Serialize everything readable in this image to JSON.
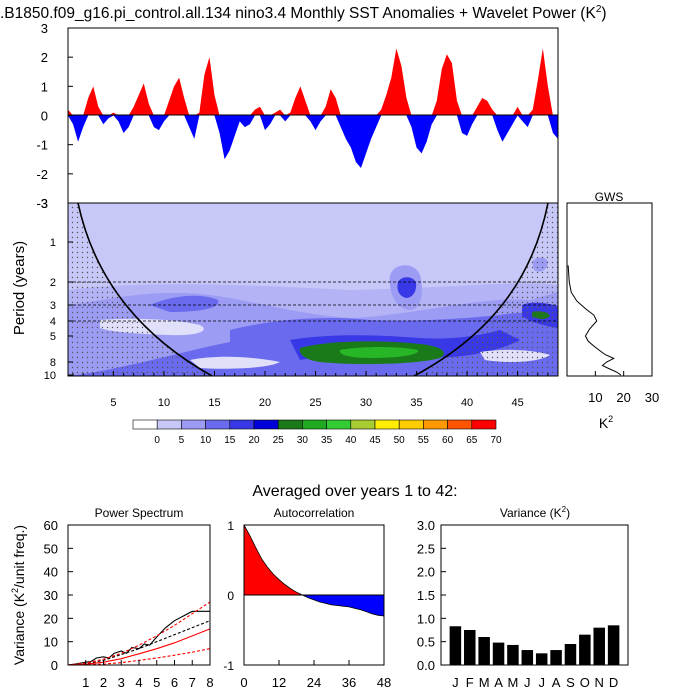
{
  "title": ".B1850.f09_g16.pi_control.all.134 nino3.4 Monthly SST Anomalies + Wavelet Power (K",
  "title_sup": "2",
  "title_close": ")",
  "subtitle": "Averaged over years 1 to 42:",
  "chart_data": [
    {
      "id": "anomaly",
      "type": "area",
      "ylim": [
        -3,
        3
      ],
      "yticks": [
        -3,
        -2,
        -1,
        0,
        1,
        2,
        3
      ],
      "xlim": [
        0.5,
        49
      ],
      "pos_color": "#ff0000",
      "neg_color": "#0000ff",
      "x": [
        0.5,
        1.0,
        1.5,
        2.0,
        2.5,
        3.0,
        3.5,
        4.0,
        4.5,
        5.0,
        5.5,
        6.0,
        6.5,
        7.0,
        7.5,
        8.0,
        8.5,
        9.0,
        9.5,
        10.0,
        10.5,
        11.0,
        11.5,
        12.0,
        12.5,
        13.0,
        13.5,
        14.0,
        14.5,
        15.0,
        15.5,
        16.0,
        16.5,
        17.0,
        17.5,
        18.0,
        18.5,
        19.0,
        19.5,
        20.0,
        20.5,
        21.0,
        21.5,
        22.0,
        22.5,
        23.0,
        23.5,
        24.0,
        24.5,
        25.0,
        25.5,
        26.0,
        26.5,
        27.0,
        27.5,
        28.0,
        28.5,
        29.0,
        29.5,
        30.0,
        30.5,
        31.0,
        31.5,
        32.0,
        32.5,
        33.0,
        33.5,
        34.0,
        34.5,
        35.0,
        35.5,
        36.0,
        36.5,
        37.0,
        37.5,
        38.0,
        38.5,
        39.0,
        39.5,
        40.0,
        40.5,
        41.0,
        41.5,
        42.0,
        42.5,
        43.0,
        43.5,
        44.0,
        44.5,
        45.0,
        45.5,
        46.0,
        46.5,
        47.0,
        47.5,
        48.0,
        48.5,
        49.0
      ],
      "y": [
        0.2,
        -0.3,
        -0.9,
        -0.4,
        0.6,
        1.0,
        0.3,
        -0.3,
        -0.1,
        0.1,
        -0.2,
        -0.6,
        -0.4,
        0.3,
        0.7,
        1.1,
        0.4,
        -0.4,
        -0.5,
        -0.2,
        0.5,
        1.0,
        1.3,
        0.6,
        -0.4,
        -0.8,
        0.1,
        1.4,
        2.0,
        0.7,
        -0.6,
        -1.5,
        -1.2,
        -0.7,
        -0.2,
        -0.4,
        -0.3,
        0.2,
        0.3,
        -0.5,
        -0.3,
        0.1,
        0.2,
        -0.2,
        0.1,
        0.6,
        1.0,
        0.5,
        -0.2,
        -0.5,
        -0.2,
        0.3,
        0.9,
        0.6,
        -0.4,
        -0.8,
        -1.1,
        -1.6,
        -1.8,
        -1.3,
        -0.8,
        -0.4,
        0.2,
        0.7,
        1.3,
        2.3,
        1.7,
        0.6,
        -0.4,
        -1.1,
        -1.3,
        -0.9,
        -0.3,
        0.5,
        1.6,
        2.1,
        1.8,
        0.5,
        -0.6,
        -0.7,
        -0.3,
        0.3,
        0.6,
        0.5,
        0.2,
        -0.5,
        -0.9,
        -0.6,
        -0.3,
        0.3,
        -0.2,
        -0.4,
        0.2,
        1.2,
        2.3,
        1.0,
        -0.6,
        -0.8
      ]
    },
    {
      "id": "wavelet",
      "type": "heatmap",
      "xticks": [
        5,
        10,
        15,
        20,
        25,
        30,
        35,
        40,
        45
      ],
      "ylabel": "Period (years)",
      "yticks": [
        1,
        2,
        3,
        4,
        5,
        8,
        10
      ],
      "colorbar_ticks": [
        0,
        5,
        10,
        15,
        20,
        25,
        30,
        35,
        40,
        45,
        50,
        55,
        60,
        65,
        70
      ],
      "colorbar_colors": [
        "#ffffff",
        "#c8c8f8",
        "#9c9cf4",
        "#6a6aee",
        "#3838e6",
        "#0000d8",
        "#1a7a1a",
        "#1faa1f",
        "#33cc33",
        "#aacc33",
        "#ffee00",
        "#ffcc00",
        "#ff9900",
        "#ff5500",
        "#ff0000"
      ],
      "shading": [
        {
          "level": 1,
          "color": "#b3b3f6"
        },
        {
          "level": 2,
          "color": "#9999f2"
        },
        {
          "level": 3,
          "color": "#5555ea"
        },
        {
          "level": 4,
          "color": "#2b2be0"
        },
        {
          "level": 5,
          "color": "#0e7f1c"
        },
        {
          "level": 6,
          "color": "#26b626"
        }
      ]
    },
    {
      "id": "gws",
      "type": "line",
      "title": "GWS",
      "xlabel": "K",
      "xlabel_sup": "2",
      "xticks": [
        10,
        20,
        30
      ],
      "xlim": [
        0,
        30
      ],
      "period": [
        1.5,
        2.0,
        2.4,
        2.8,
        3.2,
        3.6,
        4.0,
        4.5,
        5.0,
        5.5,
        6.0,
        6.5,
        7.0,
        7.5,
        8.0,
        8.5,
        9.0,
        9.5,
        10.0
      ],
      "power": [
        0.4,
        0.8,
        1.5,
        3.5,
        6.5,
        9.5,
        10.5,
        8.0,
        6.5,
        7.5,
        9.5,
        11.5,
        13.5,
        16.5,
        14.0,
        12.5,
        15.0,
        17.5,
        19.0
      ]
    },
    {
      "id": "power_spectrum",
      "type": "line",
      "title": "Power Spectrum",
      "ylabel": "Variance (K",
      "ylabel_sup": "2",
      "ylabel_tail": "/unit freq.)",
      "ylim": [
        0,
        60
      ],
      "yticks": [
        0,
        10,
        20,
        30,
        40,
        50,
        60
      ],
      "xlim": [
        0,
        8
      ],
      "xticks": [
        1,
        2,
        3,
        4,
        5,
        6,
        7,
        8
      ],
      "series": [
        {
          "color": "#000000",
          "dash": false,
          "x": [
            0,
            0.5,
            1,
            1.3,
            1.6,
            2,
            2.3,
            2.6,
            3,
            3.3,
            3.6,
            4,
            4.3,
            4.6,
            5,
            5.5,
            6,
            6.5,
            7,
            7.5,
            8
          ],
          "y": [
            0,
            0.5,
            1.2,
            1.5,
            3,
            3.5,
            3,
            5,
            6,
            5,
            7.5,
            7,
            9,
            8.5,
            12,
            16,
            19,
            21,
            23,
            23,
            23
          ]
        },
        {
          "color": "#000000",
          "dash": true,
          "x": [
            0,
            1,
            2,
            3,
            4,
            5,
            6,
            7,
            8
          ],
          "y": [
            0,
            0.5,
            2,
            4.5,
            7,
            10,
            13,
            16,
            19
          ]
        },
        {
          "color": "#ff0000",
          "dash": false,
          "x": [
            0,
            1,
            2,
            3,
            4,
            5,
            6,
            7,
            8
          ],
          "y": [
            0,
            0.3,
            1.2,
            2.7,
            4.8,
            7,
            9.5,
            12.5,
            15.5
          ]
        },
        {
          "color": "#ff0000",
          "dash": true,
          "x": [
            0,
            1,
            2,
            3,
            4,
            5,
            6,
            7,
            8
          ],
          "y": [
            0,
            0.8,
            2.5,
            5,
            8.5,
            12.5,
            17,
            22,
            27
          ]
        },
        {
          "color": "#ff0000",
          "dash": true,
          "x": [
            0,
            1,
            2,
            3,
            4,
            5,
            6,
            7,
            8
          ],
          "y": [
            0,
            0.1,
            0.4,
            1,
            2,
            3,
            4.2,
            5.5,
            7
          ]
        }
      ]
    },
    {
      "id": "autocorrelation",
      "type": "area",
      "title": "Autocorrelation",
      "ylim": [
        -1,
        1
      ],
      "yticks": [
        -1,
        0,
        1
      ],
      "xlim": [
        0,
        48
      ],
      "xticks": [
        0,
        12,
        24,
        36,
        48
      ],
      "pos_color": "#ff0000",
      "neg_color": "#0000ff",
      "x": [
        0,
        2,
        4,
        6,
        8,
        10,
        12,
        14,
        16,
        18,
        20,
        22,
        24,
        26,
        28,
        30,
        32,
        34,
        36,
        38,
        40,
        42,
        44,
        46,
        48
      ],
      "y": [
        1.0,
        0.85,
        0.68,
        0.52,
        0.4,
        0.3,
        0.22,
        0.15,
        0.09,
        0.04,
        0.0,
        -0.04,
        -0.07,
        -0.1,
        -0.12,
        -0.14,
        -0.15,
        -0.16,
        -0.17,
        -0.19,
        -0.21,
        -0.24,
        -0.27,
        -0.29,
        -0.3
      ]
    },
    {
      "id": "variance",
      "type": "bar",
      "title": "Variance (K",
      "title_sup": "2",
      "title_close": ")",
      "ylim": [
        0,
        3
      ],
      "yticks": [
        "0.0",
        "0.5",
        "1.0",
        "1.5",
        "2.0",
        "2.5",
        "3.0"
      ],
      "categories": [
        "J",
        "F",
        "M",
        "A",
        "M",
        "J",
        "J",
        "A",
        "S",
        "O",
        "N",
        "D"
      ],
      "values": [
        0.83,
        0.75,
        0.6,
        0.48,
        0.43,
        0.32,
        0.25,
        0.32,
        0.45,
        0.65,
        0.8,
        0.85
      ],
      "color": "#000000"
    }
  ]
}
